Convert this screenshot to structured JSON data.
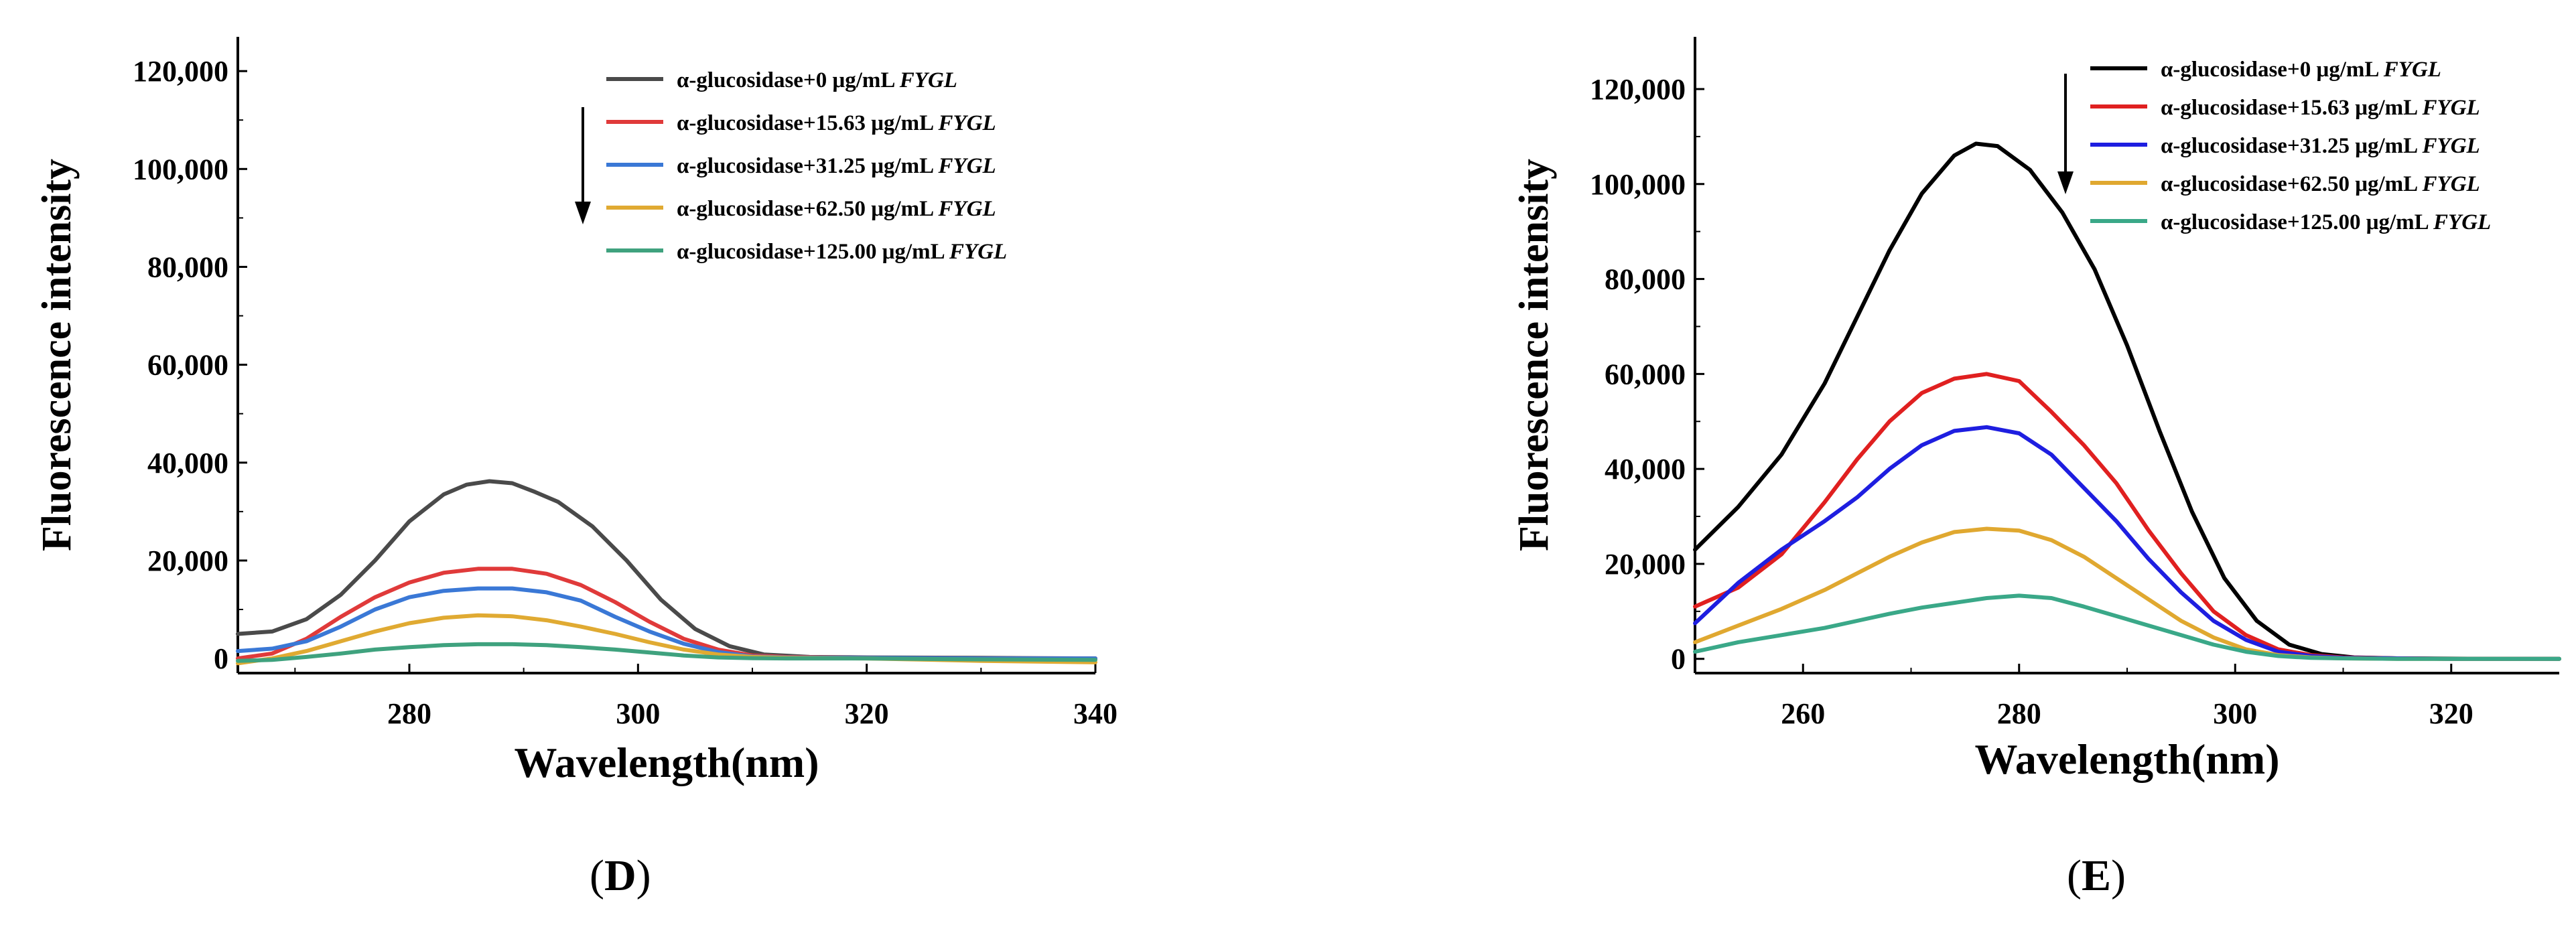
{
  "chart_data": [
    {
      "panel": "D",
      "type": "line",
      "title": "",
      "xlabel": "Wavelength(nm)",
      "ylabel": "Fluorescence intensity",
      "xlim": [
        265,
        340
      ],
      "ylim": [
        -3000,
        127000
      ],
      "xticks": [
        280,
        300,
        320,
        340
      ],
      "xtick_labels": [
        "280",
        "300",
        "320",
        "340"
      ],
      "yticks": [
        0,
        20000,
        40000,
        60000,
        80000,
        100000,
        120000
      ],
      "ytick_labels": [
        "0",
        "20,000",
        "40,000",
        "60,000",
        "80,000",
        "100,000",
        "120,000"
      ],
      "legend_position": "top-right",
      "arrow": "downward arrow beside legend",
      "series": [
        {
          "name": "α-glucosidase+0 μg/mL FYGL",
          "name_plain": "α-glucosidase+0 μg/mL ",
          "name_italic": "FYGL",
          "color": "#4a4a4a",
          "x": [
            265,
            268,
            271,
            274,
            277,
            280,
            283,
            285,
            287,
            289,
            291,
            293,
            296,
            299,
            302,
            305,
            308,
            311,
            315,
            320,
            330,
            340
          ],
          "y": [
            5000,
            5500,
            8000,
            13000,
            20000,
            28000,
            33500,
            35500,
            36200,
            35800,
            34000,
            32000,
            27000,
            20000,
            12000,
            6000,
            2500,
            800,
            300,
            200,
            100,
            0
          ]
        },
        {
          "name": "α-glucosidase+15.63 μg/mL FYGL",
          "name_plain": "α-glucosidase+15.63 μg/mL ",
          "name_italic": "FYGL",
          "color": "#e03a3a",
          "x": [
            265,
            268,
            271,
            274,
            277,
            280,
            283,
            286,
            289,
            292,
            295,
            298,
            301,
            304,
            307,
            310,
            313,
            320,
            330,
            340
          ],
          "y": [
            0,
            1000,
            4000,
            8500,
            12500,
            15500,
            17500,
            18300,
            18300,
            17300,
            15000,
            11500,
            7500,
            4000,
            1800,
            600,
            300,
            100,
            0,
            0
          ]
        },
        {
          "name": "α-glucosidase+31.25 μg/mL FYGL",
          "name_plain": "α-glucosidase+31.25 μg/mL ",
          "name_italic": "FYGL",
          "color": "#3a78d6",
          "x": [
            265,
            268,
            271,
            274,
            277,
            280,
            283,
            286,
            289,
            292,
            295,
            298,
            301,
            304,
            307,
            310,
            313,
            320,
            330,
            340
          ],
          "y": [
            1500,
            2000,
            3500,
            6500,
            10000,
            12500,
            13800,
            14300,
            14300,
            13500,
            11800,
            8500,
            5500,
            3000,
            1300,
            400,
            200,
            100,
            0,
            0
          ]
        },
        {
          "name": "α-glucosidase+62.50 μg/mL FYGL",
          "name_plain": "α-glucosidase+62.50 μg/mL ",
          "name_italic": "FYGL",
          "color": "#e0aa32",
          "x": [
            265,
            268,
            271,
            274,
            277,
            280,
            283,
            286,
            289,
            292,
            295,
            298,
            301,
            304,
            307,
            310,
            313,
            320,
            330,
            340
          ],
          "y": [
            -1000,
            0,
            1500,
            3500,
            5500,
            7200,
            8300,
            8800,
            8600,
            7800,
            6500,
            5000,
            3300,
            1800,
            800,
            300,
            100,
            0,
            -500,
            -800
          ]
        },
        {
          "name": "α-glucosidase+125.00 μg/mL FYGL",
          "name_plain": "α-glucosidase+125.00 μg/mL ",
          "name_italic": "FYGL",
          "color": "#3fa27e",
          "x": [
            265,
            268,
            271,
            274,
            277,
            280,
            283,
            286,
            289,
            292,
            295,
            298,
            301,
            304,
            307,
            310,
            313,
            320,
            330,
            340
          ],
          "y": [
            -500,
            -300,
            300,
            1000,
            1800,
            2300,
            2700,
            2900,
            2900,
            2700,
            2300,
            1800,
            1200,
            600,
            200,
            50,
            0,
            0,
            -200,
            -300
          ]
        }
      ]
    },
    {
      "panel": "E",
      "type": "line",
      "title": "",
      "xlabel": "Wavelength(nm)",
      "ylabel": "Fluorescence intensity",
      "xlim": [
        250,
        330
      ],
      "ylim": [
        -3000,
        131000
      ],
      "xticks": [
        260,
        280,
        300,
        320
      ],
      "xtick_labels": [
        "260",
        "280",
        "300",
        "320"
      ],
      "yticks": [
        0,
        20000,
        40000,
        60000,
        80000,
        100000,
        120000
      ],
      "ytick_labels": [
        "0",
        "20,000",
        "40,000",
        "60,000",
        "80,000",
        "100,000",
        "120,000"
      ],
      "legend_position": "top-right",
      "arrow": "downward arrow beside legend",
      "series": [
        {
          "name": "α-glucosidase+0 μg/mL FYGL",
          "name_plain": "α-glucosidase+0 μg/mL ",
          "name_italic": "FYGL",
          "color": "#000000",
          "x": [
            250,
            254,
            258,
            262,
            265,
            268,
            271,
            274,
            276,
            278,
            281,
            284,
            287,
            290,
            293,
            296,
            299,
            302,
            305,
            308,
            311,
            315,
            320,
            330
          ],
          "y": [
            23000,
            32000,
            43000,
            58000,
            72000,
            86000,
            98000,
            106000,
            108500,
            108000,
            103000,
            94000,
            82000,
            66000,
            48000,
            31000,
            17000,
            8000,
            3000,
            1000,
            300,
            100,
            50,
            0
          ]
        },
        {
          "name": "α-glucosidase+15.63 μg/mL FYGL",
          "name_plain": "α-glucosidase+15.63 μg/mL ",
          "name_italic": "FYGL",
          "color": "#e02020",
          "x": [
            250,
            254,
            258,
            262,
            265,
            268,
            271,
            274,
            277,
            280,
            283,
            286,
            289,
            292,
            295,
            298,
            301,
            304,
            307,
            310,
            315,
            320,
            330
          ],
          "y": [
            11000,
            15000,
            22000,
            33000,
            42000,
            50000,
            56000,
            59000,
            60000,
            58500,
            52000,
            45000,
            37000,
            27000,
            18000,
            10000,
            5000,
            2000,
            800,
            300,
            100,
            0,
            0
          ]
        },
        {
          "name": "α-glucosidase+31.25 μg/mL FYGL",
          "name_plain": "α-glucosidase+31.25 μg/mL ",
          "name_italic": "FYGL",
          "color": "#1e1ee0",
          "x": [
            250,
            254,
            258,
            262,
            265,
            268,
            271,
            274,
            277,
            280,
            283,
            286,
            289,
            292,
            295,
            298,
            301,
            304,
            307,
            310,
            315,
            320,
            330
          ],
          "y": [
            7500,
            16000,
            23000,
            29000,
            34000,
            40000,
            45000,
            48000,
            48800,
            47500,
            43000,
            36000,
            29000,
            21000,
            14000,
            8000,
            4000,
            1500,
            600,
            200,
            100,
            0,
            0
          ]
        },
        {
          "name": "α-glucosidase+62.50 μg/mL FYGL",
          "name_plain": "α-glucosidase+62.50 μg/mL ",
          "name_italic": "FYGL",
          "color": "#e0a830",
          "x": [
            250,
            254,
            258,
            262,
            265,
            268,
            271,
            274,
            277,
            280,
            283,
            286,
            289,
            292,
            295,
            298,
            301,
            304,
            307,
            310,
            315,
            320,
            330
          ],
          "y": [
            3500,
            7000,
            10500,
            14500,
            18000,
            21500,
            24500,
            26700,
            27400,
            27000,
            25000,
            21500,
            17000,
            12500,
            8000,
            4500,
            2000,
            800,
            300,
            100,
            0,
            0,
            0
          ]
        },
        {
          "name": "α-glucosidase+125.00 μg/mL FYGL",
          "name_plain": "α-glucosidase+125.00 μg/mL ",
          "name_italic": "FYGL",
          "color": "#3aa888",
          "x": [
            250,
            254,
            258,
            262,
            265,
            268,
            271,
            274,
            277,
            280,
            283,
            286,
            289,
            292,
            295,
            298,
            301,
            304,
            307,
            310,
            315,
            320,
            330
          ],
          "y": [
            1500,
            3500,
            5000,
            6500,
            8000,
            9500,
            10800,
            11800,
            12800,
            13300,
            12800,
            11000,
            9000,
            7000,
            5000,
            3000,
            1500,
            600,
            200,
            100,
            0,
            0,
            0
          ]
        }
      ]
    }
  ],
  "captions": {
    "left": "D",
    "right": "E"
  }
}
